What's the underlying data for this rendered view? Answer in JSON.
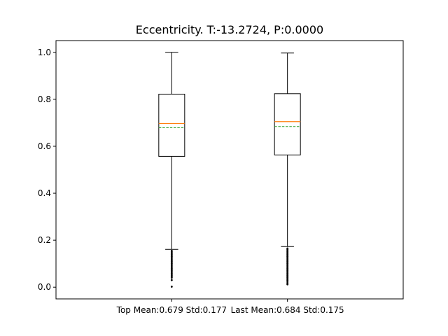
{
  "chart_data": {
    "type": "box",
    "title": "Eccentricity. T:-13.2724, P:0.0000",
    "xlabel": "",
    "ylabel": "",
    "ylim": [
      -0.05,
      1.05
    ],
    "yticks": [
      0.0,
      0.2,
      0.4,
      0.6,
      0.8,
      1.0
    ],
    "ytick_labels": [
      "0.0",
      "0.2",
      "0.4",
      "0.6",
      "0.8",
      "1.0"
    ],
    "grid": false,
    "colors": {
      "median": "#ff7f0e",
      "mean": "#2ca02c",
      "box": "#000000"
    },
    "categories": [
      "Top Mean:0.679 Std:0.177",
      "Last Mean:0.684 Std:0.175"
    ],
    "boxes": [
      {
        "q1": 0.557,
        "median": 0.697,
        "q3": 0.822,
        "mean": 0.679,
        "whisker_low": 0.161,
        "whisker_high": 1.0,
        "outliers": [
          0.155,
          0.15,
          0.145,
          0.14,
          0.135,
          0.13,
          0.125,
          0.12,
          0.115,
          0.11,
          0.105,
          0.1,
          0.095,
          0.09,
          0.085,
          0.08,
          0.075,
          0.07,
          0.065,
          0.06,
          0.055,
          0.05,
          0.045,
          0.04,
          0.03,
          0.002
        ]
      },
      {
        "q1": 0.563,
        "median": 0.705,
        "q3": 0.824,
        "mean": 0.684,
        "whisker_low": 0.173,
        "whisker_high": 0.997,
        "outliers": [
          0.165,
          0.16,
          0.155,
          0.15,
          0.145,
          0.14,
          0.135,
          0.13,
          0.125,
          0.12,
          0.115,
          0.11,
          0.105,
          0.1,
          0.095,
          0.09,
          0.085,
          0.08,
          0.075,
          0.07,
          0.065,
          0.06,
          0.055,
          0.05,
          0.045,
          0.04,
          0.035,
          0.03,
          0.025,
          0.018,
          0.012
        ]
      }
    ]
  }
}
